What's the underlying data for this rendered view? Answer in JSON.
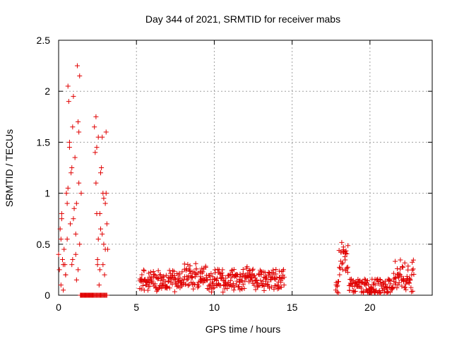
{
  "chart_data": {
    "type": "scatter",
    "title": "Day 344 of 2021, SRMTID for receiver mabs",
    "xlabel": "GPS time / hours",
    "ylabel": "SRMTID / TECUs",
    "xlim": [
      0,
      24
    ],
    "ylim": [
      0,
      2.5
    ],
    "xticks": [
      0,
      5,
      10,
      15,
      20
    ],
    "xtick_labels": [
      "0",
      "5",
      "10",
      "15",
      "20"
    ],
    "yticks": [
      0,
      0.5,
      1,
      1.5,
      2,
      2.5
    ],
    "ytick_labels": [
      "0",
      "0.5",
      "1",
      "1.5",
      "2",
      "2.5"
    ],
    "grid": true,
    "marker": "+",
    "color": "#e00000",
    "series": [
      {
        "name": "SRMTID",
        "x": [
          0.0,
          0.05,
          0.1,
          0.15,
          0.2,
          0.25,
          0.3,
          0.35,
          0.4,
          0.45,
          0.5,
          0.55,
          0.6,
          0.65,
          0.7,
          0.75,
          0.8,
          0.85,
          0.9,
          0.95,
          1.0,
          1.05,
          1.1,
          1.15,
          1.2,
          1.25,
          1.3,
          1.35,
          1.4,
          1.45,
          1.5,
          1.55,
          1.6,
          1.65,
          1.7,
          1.75,
          1.8,
          1.85,
          1.9,
          1.95,
          2.0,
          2.05,
          2.1,
          2.15,
          2.2,
          2.25,
          2.3,
          2.35,
          2.4,
          2.45,
          2.5,
          2.55,
          2.6,
          2.65,
          2.7,
          2.75,
          2.8,
          2.85,
          2.9,
          2.95,
          3.0,
          3.05,
          3.1,
          0.3,
          0.55,
          0.7,
          0.85,
          1.1,
          1.3,
          1.45,
          2.4,
          2.55,
          2.7,
          2.9,
          3.0,
          0.15,
          0.45,
          0.95,
          1.25,
          2.5,
          2.8,
          3.05,
          0.2,
          0.6,
          0.9,
          1.15,
          1.35,
          2.45,
          2.65,
          2.85
        ],
        "y": [
          0.4,
          0.25,
          0.65,
          0.1,
          0.8,
          0.35,
          0.05,
          0.45,
          0.3,
          0.2,
          1.0,
          0.55,
          2.05,
          1.9,
          1.45,
          0.7,
          1.2,
          0.3,
          1.65,
          1.95,
          0.85,
          1.35,
          0.6,
          0.15,
          2.25,
          1.7,
          1.1,
          0.5,
          0.0,
          0.0,
          0.0,
          0.0,
          0.0,
          0.0,
          0.0,
          0.0,
          0.0,
          0.0,
          0.0,
          0.0,
          0.0,
          0.0,
          0.0,
          0.0,
          0.0,
          0.0,
          0.0,
          0.0,
          0.0,
          0.0,
          0.0,
          0.0,
          0.0,
          0.0,
          0.0,
          0.0,
          0.0,
          0.0,
          0.0,
          0.0,
          0.0,
          0.0,
          0.0,
          0.3,
          0.9,
          1.5,
          1.25,
          0.4,
          1.6,
          1.0,
          1.75,
          1.55,
          1.2,
          0.95,
          0.45,
          0.55,
          0.2,
          0.75,
          0.25,
          0.35,
          0.6,
          1.0,
          0.75,
          1.05,
          0.35,
          0.9,
          2.15,
          1.45,
          0.8,
          0.3
        ],
        "extra_x": [
          2.3,
          2.35,
          2.4,
          2.45,
          2.5,
          2.55,
          2.6,
          2.65,
          2.7,
          2.75,
          2.8,
          2.85,
          2.9,
          2.95,
          3.0,
          3.05,
          3.1,
          3.15,
          1.4,
          1.45,
          1.5,
          1.55,
          1.6,
          1.65,
          1.7,
          1.75,
          1.8,
          1.85,
          1.9,
          1.95,
          2.0,
          2.05,
          2.1,
          2.15,
          2.2
        ],
        "extra_y": [
          1.65,
          1.4,
          1.1,
          0.8,
          0.3,
          0.55,
          0.1,
          0.25,
          0.65,
          1.25,
          1.55,
          1.0,
          0.5,
          0.2,
          0.9,
          1.6,
          0.7,
          0.45,
          0.0,
          0.0,
          0.0,
          0.0,
          0.0,
          0.0,
          0.0,
          0.0,
          0.0,
          0.0,
          0.0,
          0.0,
          0.0,
          0.0,
          0.0,
          0.0,
          0.0
        ]
      }
    ]
  }
}
